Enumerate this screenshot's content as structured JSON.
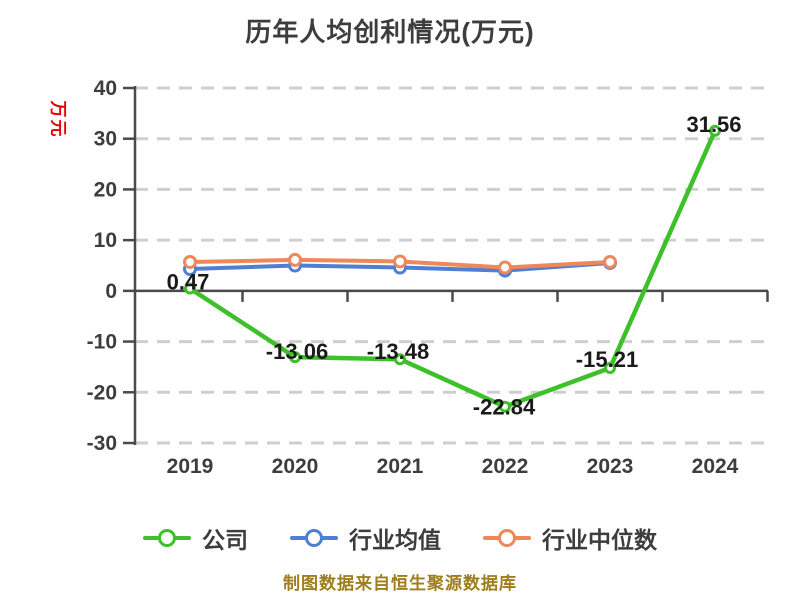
{
  "title": "历年人均创利情况(万元)",
  "y_axis_unit_label": "万元",
  "footer_note": "制图数据来自恒生聚源数据库",
  "chart_data": {
    "type": "line",
    "title": "历年人均创利情况(万元)",
    "x_labels": [
      "2019",
      "2020",
      "2021",
      "2022",
      "2023",
      "2024"
    ],
    "yticks": [
      40,
      30,
      20,
      10,
      0,
      -10,
      -20,
      -30
    ],
    "ylim": [
      -30,
      40
    ],
    "grid": "horizontal-dashed",
    "legend_position": "bottom",
    "series": [
      {
        "name": "公司",
        "color": "#3ec02a",
        "marker": "white-circle",
        "values": [
          0.47,
          -13.06,
          -13.48,
          -22.84,
          -15.21,
          31.56
        ],
        "data_labels": [
          "0.47",
          "-13.06",
          "-13.48",
          "-22.84",
          "-15.21",
          "31.56"
        ]
      },
      {
        "name": "行业均值",
        "color": "#4d80d5",
        "marker": "white-circle",
        "values": [
          4.3,
          5.0,
          4.6,
          4.0,
          5.5
        ]
      },
      {
        "name": "行业中位数",
        "color": "#f0875a",
        "marker": "white-circle",
        "values": [
          5.7,
          6.1,
          5.8,
          4.6,
          5.7
        ]
      }
    ],
    "colors": {
      "grid": "#cfcfcf",
      "axis": "#4a4a4a",
      "tick_label": "#3d3d3d",
      "data_label": "#1a1a1a",
      "title": "#3d3d3d",
      "unit_label": "#e60000",
      "footer": "#9e7d1d"
    }
  }
}
